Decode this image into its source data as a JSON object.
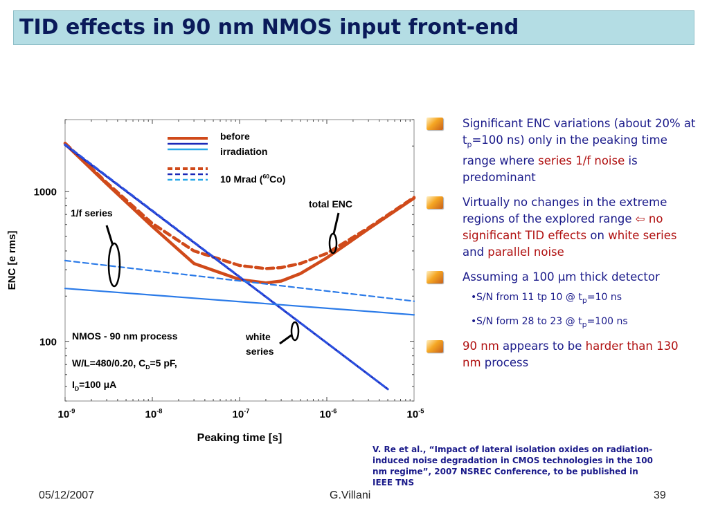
{
  "slide": {
    "title": "TID effects in 90 nm NMOS input front-end",
    "footer": {
      "date": "05/12/2007",
      "author": "G.Villani",
      "page": "39"
    },
    "reference": "V. Re et al., “Impact of lateral isolation oxides on radiation-induced noise degradation in CMOS technologies in the 100 nm regime”, 2007 NSREC Conference, to be published in IEEE TNS"
  },
  "bullets": [
    {
      "segments": [
        {
          "text": "Significant ENC variations (about 20% at t"
        },
        {
          "text": "p",
          "sub": true
        },
        {
          "text": "=100 ns) only in the peaking time range where "
        },
        {
          "text": "series 1/f noise",
          "color": "#b01010"
        },
        {
          "text": " is predominant"
        }
      ]
    },
    {
      "segments": [
        {
          "text": "Virtually no changes in the extreme regions of the explored range "
        },
        {
          "text": "⇦",
          "color": "#b01010"
        },
        {
          "text": " "
        },
        {
          "text": "no significant TID effects",
          "color": "#b01010"
        },
        {
          "text": " on "
        },
        {
          "text": "white series",
          "color": "#b01010"
        },
        {
          "text": " and "
        },
        {
          "text": "parallel noise",
          "color": "#b01010"
        }
      ]
    },
    {
      "segments": [
        {
          "text": "Assuming a 100 μm thick detector"
        }
      ],
      "subitems": [
        [
          {
            "text": "S/N from 11 tp 10 @ t"
          },
          {
            "text": "p",
            "sub": true
          },
          {
            "text": "=10 ns"
          }
        ],
        [
          {
            "text": "S/N form 28 to 23 @ t"
          },
          {
            "text": "p",
            "sub": true
          },
          {
            "text": "=100 ns"
          }
        ]
      ]
    },
    {
      "segments": [
        {
          "text": "90 nm",
          "color": "#b01010"
        },
        {
          "text": " appears to be "
        },
        {
          "text": "harder than 130 nm",
          "color": "#b01010"
        },
        {
          "text": " process"
        }
      ]
    }
  ],
  "chart_data": {
    "type": "line",
    "xscale": "log",
    "yscale": "log",
    "xlim": [
      1e-09,
      1e-05
    ],
    "ylim": [
      40,
      3000
    ],
    "xlabel": "Peaking time [s]",
    "ylabel": "ENC [e rms]",
    "xticks": [
      {
        "value": 1e-09,
        "base": "10",
        "exp": "-9"
      },
      {
        "value": 1e-08,
        "base": "10",
        "exp": "-8"
      },
      {
        "value": 1e-07,
        "base": "10",
        "exp": "-7"
      },
      {
        "value": 1e-06,
        "base": "10",
        "exp": "-6"
      },
      {
        "value": 1e-05,
        "base": "10",
        "exp": "-5"
      }
    ],
    "yticks": [
      {
        "value": 100,
        "label": "100"
      },
      {
        "value": 1000,
        "label": "1000"
      }
    ],
    "legend": {
      "position": "top-center",
      "entries": [
        {
          "label": "before irradiation",
          "style": "solid",
          "colors": [
            "#d04a1a",
            "#1a28b8",
            "#28a8e8"
          ]
        },
        {
          "label": "10 Mrad (60Co)",
          "style": "dashed",
          "colors": [
            "#d04a1a",
            "#1a28b8",
            "#28a8e8"
          ]
        }
      ],
      "label_before": [
        "before",
        "irradiation"
      ],
      "label_after": {
        "pre": "10 Mrad (",
        "sup": "60",
        "post": "Co)"
      }
    },
    "series": [
      {
        "kind": "total ENC",
        "condition": "before irradiation",
        "style": "solid",
        "color": "#d04a1a",
        "x": [
          1e-09,
          3e-09,
          1e-08,
          3e-08,
          1e-07,
          2e-07,
          3e-07,
          5e-07,
          1e-06,
          3e-06,
          1e-05
        ],
        "y": [
          2070,
          1120,
          582,
          330,
          258,
          245,
          252,
          283,
          360,
          560,
          900
        ]
      },
      {
        "kind": "total ENC",
        "condition": "10 Mrad",
        "style": "dashed",
        "color": "#d04a1a",
        "x": [
          1e-09,
          3e-09,
          1e-08,
          3e-08,
          1e-07,
          2e-07,
          3e-07,
          5e-07,
          1e-06,
          3e-06,
          1e-05
        ],
        "y": [
          2090,
          1140,
          610,
          400,
          320,
          305,
          310,
          330,
          385,
          570,
          910
        ]
      },
      {
        "kind": "white series",
        "condition": "before irradiation",
        "style": "solid",
        "color": "#1a28b8",
        "x": [
          1e-09,
          5e-06
        ],
        "y": [
          2030,
          48
        ]
      },
      {
        "kind": "white series",
        "condition": "10 Mrad",
        "style": "dashed",
        "color": "#2a50e0",
        "x": [
          1e-09,
          5e-06
        ],
        "y": [
          2050,
          48
        ]
      },
      {
        "kind": "1/f series",
        "condition": "before irradiation",
        "style": "solid",
        "color": "#2a7ae8",
        "x": [
          1e-09,
          1e-05
        ],
        "y": [
          225,
          150
        ]
      },
      {
        "kind": "1/f series",
        "condition": "10 Mrad",
        "style": "dashed",
        "color": "#2a7ae8",
        "x": [
          1e-09,
          1e-05
        ],
        "y": [
          345,
          185
        ]
      }
    ],
    "annotations": {
      "series_1f": "1/f series",
      "total_enc": "total ENC",
      "white_series": [
        "white",
        "series"
      ],
      "process": "NMOS - 90 nm process",
      "params_line1": {
        "pre": "W/L=480/0.20, C",
        "sub": "D",
        "post": "=5 pF,"
      },
      "params_line2": {
        "pre": "I",
        "sub": "D",
        "post": "=100 μA"
      }
    }
  }
}
